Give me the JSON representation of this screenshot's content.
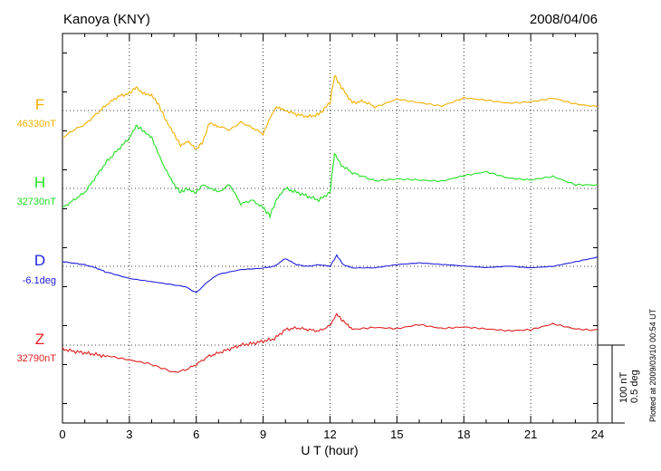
{
  "header": {
    "station": "Kanoya (KNY)",
    "date": "2008/04/06"
  },
  "footer": {
    "plotted_note": "Plotted at 2009/03/10 00:54 UT"
  },
  "scale_bar": {
    "line1": "100 nT",
    "line2": "0.5 deg"
  },
  "chart_data": {
    "type": "line",
    "xlabel": "U T (hour)",
    "xlim": [
      0,
      24
    ],
    "xticks": [
      0,
      3,
      6,
      9,
      12,
      15,
      18,
      21,
      24
    ],
    "grid": true,
    "scale": {
      "nT_per_bar": 100,
      "deg_per_bar": 0.5
    },
    "series": [
      {
        "name": "F",
        "baseline_label": "46330nT",
        "color": "#f0b000",
        "x": [
          0,
          0.5,
          1,
          1.5,
          2,
          2.5,
          3,
          3.3,
          3.6,
          4,
          4.3,
          4.6,
          5,
          5.3,
          5.6,
          6,
          6.3,
          6.6,
          7,
          7.5,
          8,
          8.5,
          9,
          9.3,
          9.6,
          10,
          10.5,
          11,
          11.5,
          12,
          12.2,
          12.5,
          13,
          13.5,
          14,
          15,
          16,
          17,
          18,
          19,
          20,
          21,
          22,
          23,
          24
        ],
        "y": [
          -35,
          -25,
          -18,
          -5,
          8,
          18,
          22,
          30,
          22,
          20,
          8,
          -10,
          -30,
          -45,
          -40,
          -50,
          -40,
          -15,
          -20,
          -25,
          -15,
          -22,
          -30,
          -10,
          5,
          0,
          -5,
          -8,
          -5,
          10,
          45,
          30,
          10,
          12,
          5,
          15,
          10,
          5,
          15,
          12,
          8,
          10,
          15,
          8,
          5
        ]
      },
      {
        "name": "H",
        "baseline_label": "32730nT",
        "color": "#22e022",
        "x": [
          0,
          0.5,
          1,
          1.5,
          2,
          2.5,
          3,
          3.3,
          3.6,
          4,
          4.3,
          4.6,
          5,
          5.3,
          5.6,
          6,
          6.3,
          6.6,
          7,
          7.5,
          8,
          8.5,
          9,
          9.3,
          9.6,
          10,
          10.5,
          11,
          11.5,
          12,
          12.2,
          12.5,
          13,
          13.5,
          14,
          15,
          16,
          17,
          18,
          19,
          20,
          21,
          22,
          23,
          24
        ],
        "y": [
          -25,
          -15,
          -5,
          15,
          35,
          50,
          65,
          80,
          75,
          65,
          45,
          25,
          5,
          -5,
          0,
          -5,
          5,
          0,
          -5,
          5,
          -20,
          -15,
          -25,
          -35,
          -15,
          0,
          -5,
          -10,
          -15,
          -5,
          45,
          30,
          20,
          15,
          10,
          12,
          10,
          8,
          15,
          20,
          12,
          10,
          15,
          5,
          5
        ]
      },
      {
        "name": "D",
        "baseline_label": "-6.1deg",
        "color": "#2020e0",
        "x": [
          0,
          0.5,
          1,
          1.5,
          2,
          3,
          4,
          5,
          5.5,
          6,
          6.5,
          7,
          8,
          9,
          9.5,
          10,
          10.5,
          11,
          11.5,
          12,
          12.3,
          12.6,
          13,
          14,
          15,
          16,
          17,
          18,
          19,
          20,
          21,
          22,
          23,
          24
        ],
        "y": [
          0.03,
          0.02,
          0.01,
          -0.01,
          -0.04,
          -0.08,
          -0.1,
          -0.12,
          -0.13,
          -0.17,
          -0.1,
          -0.05,
          -0.02,
          -0.01,
          0,
          0.05,
          0.01,
          0,
          0.01,
          0,
          0.07,
          0.01,
          -0.01,
          -0.01,
          0.01,
          0.02,
          0.01,
          0,
          -0.01,
          0,
          -0.01,
          0,
          0.03,
          0.06
        ]
      },
      {
        "name": "Z",
        "baseline_label": "32790nT",
        "color": "#e02020",
        "x": [
          0,
          0.5,
          1,
          1.5,
          2,
          3,
          4,
          4.5,
          5,
          5.5,
          6,
          6.5,
          7,
          7.5,
          8,
          8.5,
          9,
          9.5,
          10,
          10.5,
          11,
          11.5,
          12,
          12.3,
          12.6,
          13,
          14,
          15,
          16,
          17,
          18,
          19,
          20,
          21,
          22,
          23,
          24
        ],
        "y": [
          -5,
          -8,
          -10,
          -12,
          -15,
          -20,
          -25,
          -30,
          -35,
          -32,
          -25,
          -15,
          -10,
          -5,
          0,
          2,
          5,
          8,
          20,
          22,
          20,
          18,
          25,
          40,
          30,
          20,
          22,
          20,
          25,
          20,
          22,
          20,
          18,
          20,
          28,
          22,
          20
        ]
      }
    ]
  }
}
